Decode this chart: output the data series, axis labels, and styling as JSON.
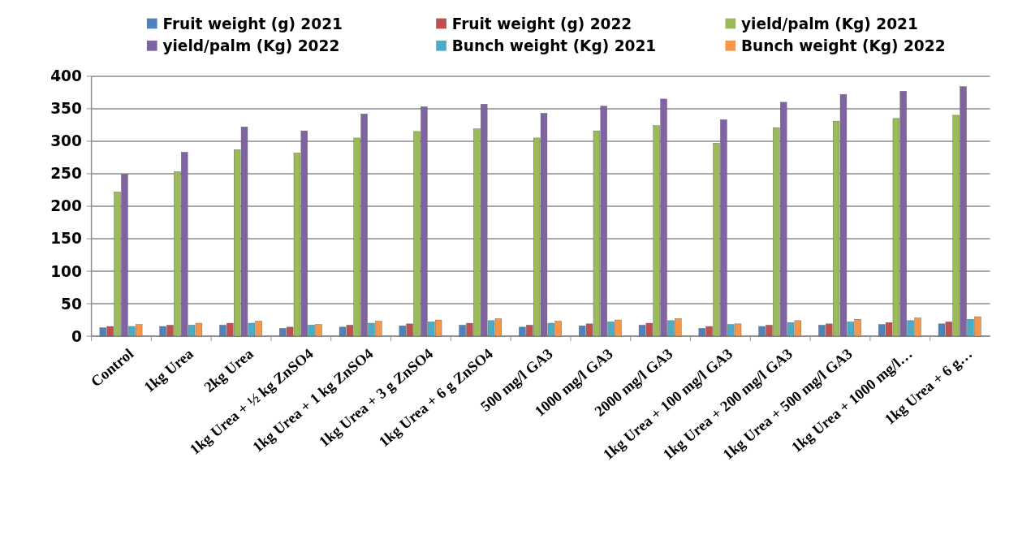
{
  "chart_data": {
    "type": "bar",
    "categories": [
      "Control",
      "1kg Urea",
      "2kg Urea",
      "1kg Urea + ½ kg ZnSO4",
      "1kg Urea + 1 kg ZnSO4",
      "1kg Urea + 3 g ZnSO4",
      "1kg Urea + 6 g ZnSO4",
      "500 mg/l GA3",
      "1000 mg/l GA3",
      "2000 mg/l GA3",
      "1kg Urea + 100 mg/l GA3",
      "1kg Urea + 200 mg/l GA3",
      "1kg Urea + 500 mg/l GA3",
      "1kg Urea + 1000 mg/l…",
      "1kg Urea + 6 g…"
    ],
    "series": [
      {
        "name": "Fruit weight (g) 2021",
        "color": "#4f81bd",
        "values": [
          13,
          15,
          17,
          12,
          14,
          16,
          17,
          14,
          16,
          17,
          12,
          15,
          17,
          18,
          19
        ]
      },
      {
        "name": "Fruit weight (g) 2022",
        "color": "#c0504d",
        "values": [
          15,
          17,
          20,
          14,
          17,
          19,
          20,
          17,
          19,
          20,
          15,
          17,
          19,
          21,
          22
        ]
      },
      {
        "name": "yield/palm (Kg) 2021",
        "color": "#9bbb59",
        "values": [
          222,
          253,
          287,
          282,
          305,
          315,
          319,
          305,
          316,
          324,
          297,
          321,
          331,
          335,
          340
        ]
      },
      {
        "name": "yield/palm (Kg) 2022",
        "color": "#8064a2",
        "values": [
          249,
          283,
          322,
          316,
          342,
          353,
          357,
          343,
          354,
          365,
          333,
          360,
          372,
          377,
          384
        ]
      },
      {
        "name": "Bunch weight (Kg) 2021",
        "color": "#4bacc6",
        "values": [
          15,
          17,
          20,
          17,
          20,
          22,
          24,
          20,
          22,
          24,
          18,
          21,
          22,
          24,
          26
        ]
      },
      {
        "name": "Bunch weight (Kg) 2022",
        "color": "#f79646",
        "values": [
          18,
          20,
          23,
          18,
          23,
          25,
          27,
          23,
          25,
          27,
          19,
          24,
          26,
          28,
          30
        ]
      }
    ],
    "ylim": [
      0,
      400
    ],
    "yticks": [
      0,
      50,
      100,
      150,
      200,
      250,
      300,
      350,
      400
    ],
    "grid": "y",
    "legend": "top"
  }
}
